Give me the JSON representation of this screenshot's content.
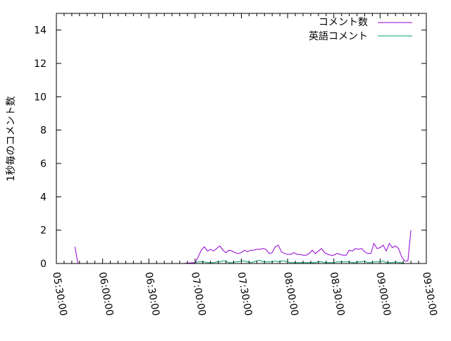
{
  "chart_data": {
    "type": "line",
    "title": "",
    "xlabel": "",
    "ylabel": "1秒毎のコメント数",
    "xlim": [
      "05:30:00",
      "09:30:00"
    ],
    "ylim": [
      0,
      15
    ],
    "x_ticks": [
      "05:30:00",
      "06:00:00",
      "06:30:00",
      "07:00:00",
      "07:30:00",
      "08:00:00",
      "08:30:00",
      "09:00:00",
      "09:30:00"
    ],
    "y_ticks": [
      "0",
      "2",
      "4",
      "6",
      "8",
      "10",
      "12",
      "14"
    ],
    "grid": false,
    "legend_position": "top-right",
    "series": [
      {
        "name": "コメント数",
        "color": "#9400d3",
        "points": [
          [
            "05:42",
            1.0
          ],
          [
            "05:44",
            0
          ],
          [
            "06:52",
            0
          ],
          [
            "07:00",
            0.05
          ],
          [
            "07:02",
            0.4
          ],
          [
            "07:04",
            0.8
          ],
          [
            "07:06",
            1.0
          ],
          [
            "07:08",
            0.75
          ],
          [
            "07:10",
            0.85
          ],
          [
            "07:12",
            0.75
          ],
          [
            "07:14",
            0.9
          ],
          [
            "07:16",
            1.05
          ],
          [
            "07:18",
            0.8
          ],
          [
            "07:20",
            0.65
          ],
          [
            "07:22",
            0.8
          ],
          [
            "07:24",
            0.75
          ],
          [
            "07:26",
            0.65
          ],
          [
            "07:28",
            0.6
          ],
          [
            "07:30",
            0.65
          ],
          [
            "07:32",
            0.8
          ],
          [
            "07:34",
            0.7
          ],
          [
            "07:36",
            0.8
          ],
          [
            "07:38",
            0.8
          ],
          [
            "07:40",
            0.85
          ],
          [
            "07:42",
            0.85
          ],
          [
            "07:44",
            0.9
          ],
          [
            "07:46",
            0.85
          ],
          [
            "07:48",
            0.6
          ],
          [
            "07:50",
            0.65
          ],
          [
            "07:52",
            1.0
          ],
          [
            "07:54",
            1.1
          ],
          [
            "07:56",
            0.7
          ],
          [
            "07:58",
            0.6
          ],
          [
            "08:00",
            0.55
          ],
          [
            "08:02",
            0.55
          ],
          [
            "08:04",
            0.65
          ],
          [
            "08:06",
            0.55
          ],
          [
            "08:08",
            0.55
          ],
          [
            "08:10",
            0.5
          ],
          [
            "08:12",
            0.5
          ],
          [
            "08:14",
            0.6
          ],
          [
            "08:16",
            0.8
          ],
          [
            "08:18",
            0.6
          ],
          [
            "08:20",
            0.75
          ],
          [
            "08:22",
            0.9
          ],
          [
            "08:24",
            0.65
          ],
          [
            "08:26",
            0.55
          ],
          [
            "08:28",
            0.5
          ],
          [
            "08:30",
            0.5
          ],
          [
            "08:32",
            0.6
          ],
          [
            "08:34",
            0.55
          ],
          [
            "08:36",
            0.5
          ],
          [
            "08:38",
            0.5
          ],
          [
            "08:40",
            0.8
          ],
          [
            "08:42",
            0.75
          ],
          [
            "08:44",
            0.9
          ],
          [
            "08:46",
            0.85
          ],
          [
            "08:48",
            0.9
          ],
          [
            "08:50",
            0.7
          ],
          [
            "08:52",
            0.6
          ],
          [
            "08:54",
            0.6
          ],
          [
            "08:56",
            1.2
          ],
          [
            "08:58",
            0.9
          ],
          [
            "09:00",
            0.95
          ],
          [
            "09:02",
            1.1
          ],
          [
            "09:04",
            0.75
          ],
          [
            "09:06",
            1.2
          ],
          [
            "09:08",
            0.95
          ],
          [
            "09:10",
            1.05
          ],
          [
            "09:12",
            0.9
          ],
          [
            "09:14",
            0.4
          ],
          [
            "09:16",
            0.15
          ],
          [
            "09:18",
            0.15
          ],
          [
            "09:20",
            2.0
          ]
        ]
      },
      {
        "name": "英語コメント",
        "color": "#009e73",
        "points": [
          [
            "07:00",
            0.05
          ],
          [
            "07:02",
            0.1
          ],
          [
            "07:04",
            0.1
          ],
          [
            "07:06",
            0.1
          ],
          [
            "07:08",
            0.05
          ],
          [
            "07:10",
            0.05
          ],
          [
            "07:12",
            0.05
          ],
          [
            "07:14",
            0.1
          ],
          [
            "07:16",
            0.1
          ],
          [
            "07:18",
            0.15
          ],
          [
            "07:20",
            0.15
          ],
          [
            "07:22",
            0.05
          ],
          [
            "07:24",
            0.05
          ],
          [
            "07:26",
            0.1
          ],
          [
            "07:28",
            0.1
          ],
          [
            "07:30",
            0.15
          ],
          [
            "07:32",
            0.15
          ],
          [
            "07:34",
            0.1
          ],
          [
            "07:36",
            0.05
          ],
          [
            "07:38",
            0.1
          ],
          [
            "07:40",
            0.15
          ],
          [
            "07:42",
            0.2
          ],
          [
            "07:44",
            0.1
          ],
          [
            "07:46",
            0.1
          ],
          [
            "07:48",
            0.1
          ],
          [
            "07:50",
            0.1
          ],
          [
            "07:52",
            0.15
          ],
          [
            "07:54",
            0.1
          ],
          [
            "07:56",
            0.15
          ],
          [
            "07:58",
            0.15
          ],
          [
            "08:00",
            0.1
          ],
          [
            "08:02",
            0.05
          ],
          [
            "08:04",
            0.05
          ],
          [
            "08:06",
            0.05
          ],
          [
            "08:08",
            0.05
          ],
          [
            "08:10",
            0.05
          ],
          [
            "08:12",
            0.05
          ],
          [
            "08:14",
            0.05
          ],
          [
            "08:16",
            0.05
          ],
          [
            "08:18",
            0.05
          ],
          [
            "08:20",
            0.1
          ],
          [
            "08:22",
            0.1
          ],
          [
            "08:24",
            0.05
          ],
          [
            "08:26",
            0.05
          ],
          [
            "08:28",
            0.05
          ],
          [
            "08:30",
            0.05
          ],
          [
            "08:32",
            0.1
          ],
          [
            "08:34",
            0.1
          ],
          [
            "08:36",
            0.1
          ],
          [
            "08:38",
            0.1
          ],
          [
            "08:40",
            0.1
          ],
          [
            "08:42",
            0.05
          ],
          [
            "08:44",
            0.05
          ],
          [
            "08:46",
            0.1
          ],
          [
            "08:48",
            0.1
          ],
          [
            "08:50",
            0.15
          ],
          [
            "08:52",
            0.05
          ],
          [
            "08:54",
            0.05
          ],
          [
            "08:56",
            0.1
          ],
          [
            "08:58",
            0.1
          ],
          [
            "09:00",
            0.1
          ],
          [
            "09:02",
            0.15
          ],
          [
            "09:04",
            0.05
          ],
          [
            "09:06",
            0.05
          ],
          [
            "09:08",
            0.05
          ],
          [
            "09:10",
            0.1
          ],
          [
            "09:12",
            0.05
          ],
          [
            "09:14",
            0.05
          ],
          [
            "09:16",
            0
          ]
        ]
      }
    ]
  }
}
